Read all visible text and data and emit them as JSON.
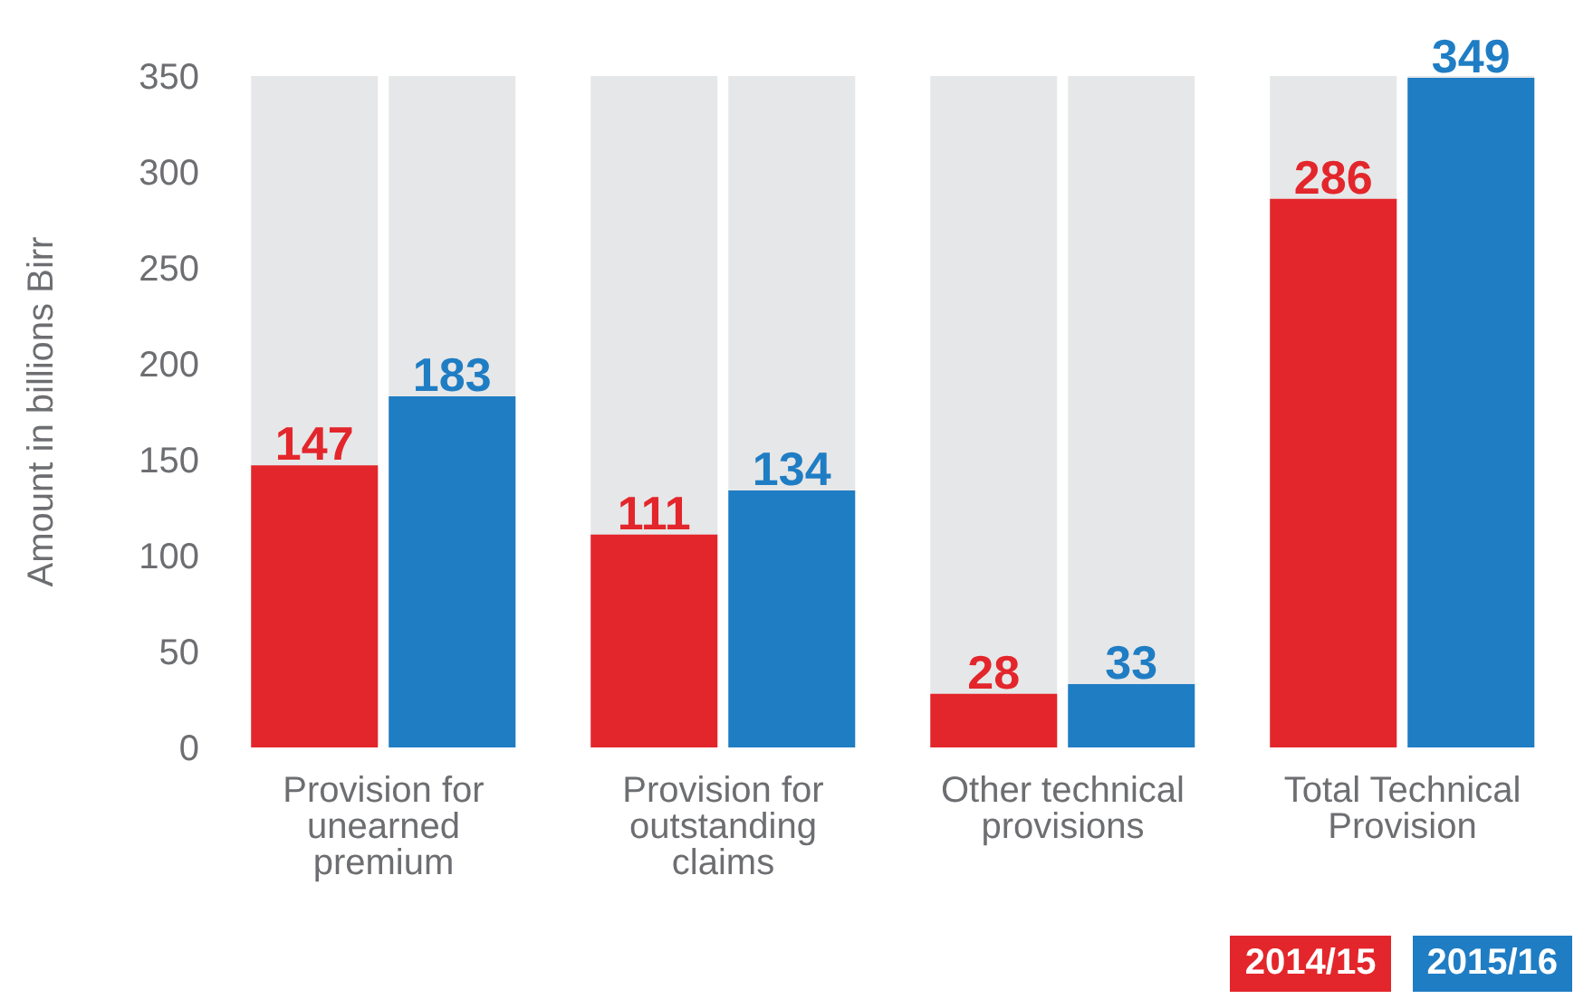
{
  "chart_data": {
    "type": "bar",
    "ylabel": "Amount in billions Birr",
    "categories": [
      "Provision for unearned premium",
      "Provision for outstanding claims",
      "Other technical provisions",
      "Total Technical Provision"
    ],
    "series": [
      {
        "name": "2014/15",
        "color": "#e3262b",
        "values": [
          147,
          111,
          28,
          286
        ]
      },
      {
        "name": "2015/16",
        "color": "#1f7dc4",
        "values": [
          183,
          134,
          33,
          349
        ]
      }
    ],
    "ylim": [
      0,
      350
    ],
    "yticks": [
      0,
      50,
      100,
      150,
      200,
      250,
      300,
      350
    ],
    "data_labels": true,
    "legend": "bottom right",
    "grid": false
  }
}
